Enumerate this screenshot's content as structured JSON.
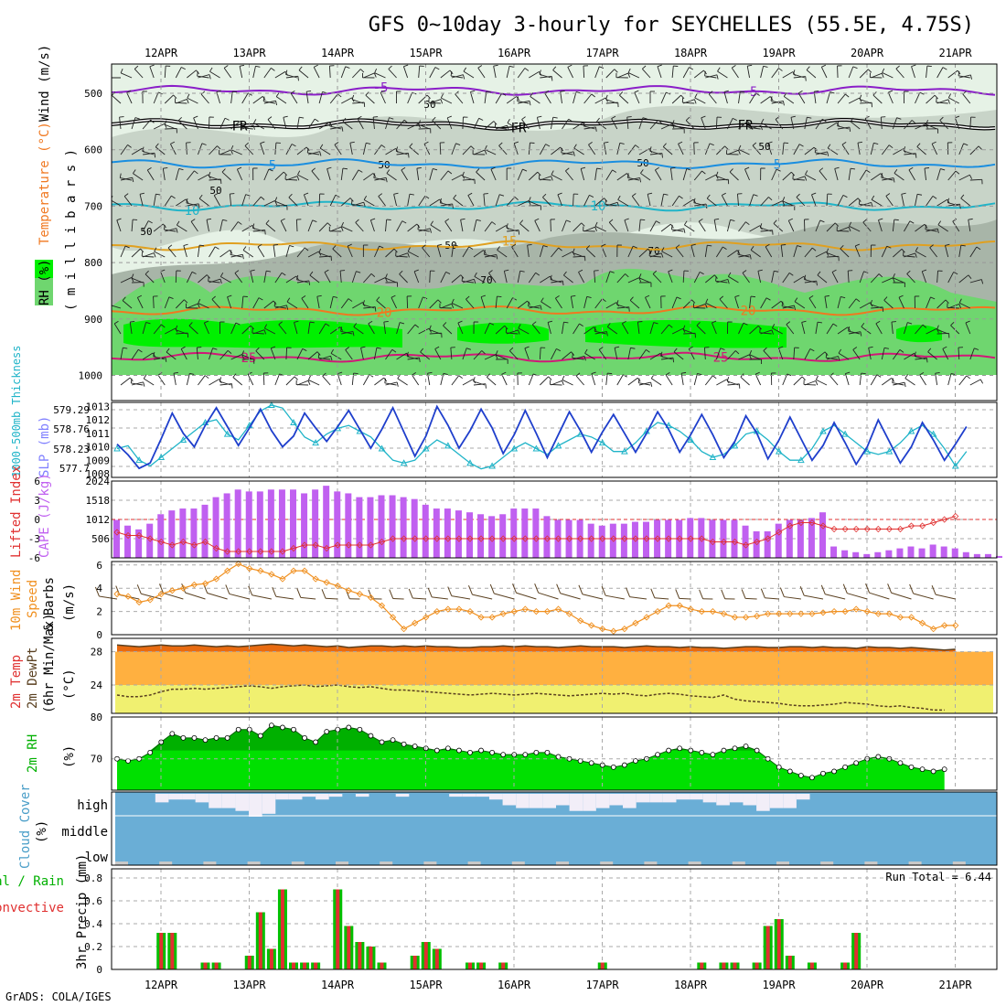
{
  "title": "GFS 0~10day 3-hourly for SEYCHELLES (55.5E, 4.75S)",
  "credit": "GrADS: COLA/IGES",
  "dates": [
    "12APR",
    "13APR",
    "14APR",
    "15APR",
    "16APR",
    "17APR",
    "18APR",
    "19APR",
    "20APR",
    "21APR"
  ],
  "colors": {
    "rh_light": "#e6f2e6",
    "rh_mid": "#c2cfc2",
    "rh_50": "#a8b5a8",
    "rh_70": "#6fd66f",
    "rh_90": "#00f000",
    "cyan": "#20b4c8",
    "blue": "#1f3fcc",
    "red": "#e03030",
    "purple": "#c060f0",
    "orange": "#f09020",
    "brown": "#5a4020",
    "green": "#00e000",
    "darkgreen": "#00b000",
    "cloud": "#6aaed6",
    "cloud_light": "#f2eef8",
    "cloud_gray": "#c8c8c8"
  },
  "panels": {
    "upper": {
      "ylabel_parts": [
        "RH (%)",
        "Temperature (°C)",
        "Wind (m/s)"
      ],
      "unit": "( m i l l i b a r s )",
      "pressure_ticks": [
        "500",
        "600",
        "700",
        "800",
        "900",
        "1000"
      ],
      "isotherms": [
        {
          "label": "-5",
          "color": "#8a1ec8",
          "p": 495
        },
        {
          "label": "FR",
          "color": "#000000",
          "p": 555
        },
        {
          "label": "5",
          "color": "#1a8ee0",
          "p": 625
        },
        {
          "label": "10",
          "color": "#20b4c8",
          "p": 700
        },
        {
          "label": "15",
          "color": "#e0a020",
          "p": 770
        },
        {
          "label": "20",
          "color": "#f07820",
          "p": 885
        },
        {
          "label": "25",
          "color": "#d01878",
          "p": 968
        }
      ],
      "rh_labels": [
        "50",
        "70"
      ]
    },
    "slp": {
      "ylabel_thk": "1000-500mb Thickness",
      "ylabel_slp": "SLP (mb)",
      "thickness_ticks": [
        "579.29",
        "578.76",
        "578.23",
        "577.7"
      ],
      "slp_ticks": [
        "1013",
        "1012",
        "1011",
        "1010",
        "1009",
        "1008"
      ],
      "slp_range": [
        1008,
        1013.3
      ],
      "thk_range": [
        5772,
        5796
      ]
    },
    "cape": {
      "ylabel_li": "Lifted Index",
      "ylabel_cape": "CAPE (J/kg)",
      "li_ticks": [
        "-6",
        "-3",
        "0",
        "3",
        "6"
      ],
      "cape_ticks": [
        "2024",
        "1518",
        "1012",
        "506"
      ],
      "cape_range": [
        0,
        2024
      ],
      "li_range": [
        6,
        -6
      ]
    },
    "wind": {
      "ylabel": [
        "10m Wind",
        "Speed",
        "& Barbs",
        "(m/s)"
      ],
      "ticks": [
        "6",
        "4",
        "2",
        "0"
      ],
      "range": [
        0,
        6.3
      ]
    },
    "temp": {
      "ylabel": [
        "2m Temp",
        "2m DewPt",
        "(6hr Min/Max)",
        "(°C)"
      ],
      "ticks": [
        "28",
        "24"
      ],
      "range": [
        20.6,
        29.6
      ]
    },
    "rh": {
      "ylabel": [
        "2m RH",
        "(%)"
      ],
      "ticks": [
        "80",
        "70"
      ],
      "range": [
        62.5,
        80
      ]
    },
    "cloud": {
      "ylabel": [
        "Cloud Cover",
        "(%)"
      ],
      "levels": [
        "high",
        "middle",
        "low"
      ]
    },
    "precip": {
      "ylabel_total": "Total / Rain",
      "ylabel_conv": "Convective",
      "ylabel_unit": "3hr Precip (mm)",
      "ticks": [
        "0.8",
        "0.6",
        "0.4",
        "0.2",
        "0"
      ],
      "range": [
        0,
        0.88
      ],
      "run_total": "Run Total = 6.44"
    }
  },
  "chart_data": {
    "type": "line",
    "x_step_hours": 3,
    "slp": [
      1010.2,
      1009.4,
      1008.4,
      1008.8,
      1010.6,
      1012.5,
      1011.0,
      1010.0,
      1011.6,
      1012.9,
      1011.5,
      1010.1,
      1011.4,
      1012.8,
      1011.2,
      1010.0,
      1010.8,
      1012.5,
      1011.4,
      1010.4,
      1011.5,
      1012.7,
      1011.3,
      1009.9,
      1011.3,
      1012.9,
      1011.1,
      1009.3,
      1010.8,
      1013.0,
      1011.6,
      1009.9,
      1011.2,
      1012.8,
      1011.4,
      1009.5,
      1010.9,
      1012.7,
      1011.0,
      1009.2,
      1010.9,
      1012.6,
      1011.2,
      1009.6,
      1011.1,
      1012.4,
      1011.0,
      1009.6,
      1011.0,
      1012.6,
      1011.3,
      1009.6,
      1010.9,
      1012.4,
      1010.9,
      1009.2,
      1010.4,
      1012.3,
      1011.0,
      1009.1,
      1010.5,
      1012.2,
      1010.6,
      1009.0,
      1010.1,
      1011.8,
      1010.3,
      1008.7,
      1010.0,
      1012.0,
      1010.4,
      1008.8,
      1010.0,
      1011.8,
      1010.5,
      1009.0,
      1010.2,
      1011.5
    ],
    "thickness": [
      5781,
      5782,
      5777,
      5775,
      5778,
      5781,
      5784,
      5787,
      5790,
      5791,
      5786,
      5784,
      5789,
      5794,
      5796,
      5795,
      5790,
      5785,
      5783,
      5786,
      5788,
      5789,
      5787,
      5785,
      5781,
      5777,
      5776,
      5777,
      5781,
      5784,
      5782,
      5779,
      5776,
      5774,
      5775,
      5778,
      5781,
      5783,
      5781,
      5779,
      5782,
      5784,
      5786,
      5785,
      5783,
      5780,
      5780,
      5783,
      5787,
      5790,
      5789,
      5787,
      5784,
      5780,
      5778,
      5779,
      5782,
      5786,
      5787,
      5784,
      5780,
      5777,
      5777,
      5781,
      5787,
      5789,
      5786,
      5783,
      5780,
      5779,
      5780,
      5783,
      5787,
      5789,
      5786,
      5781,
      5775,
      5780
    ],
    "cape": [
      1000,
      850,
      750,
      900,
      1150,
      1250,
      1300,
      1300,
      1400,
      1600,
      1700,
      1800,
      1750,
      1750,
      1800,
      1800,
      1800,
      1700,
      1800,
      1900,
      1750,
      1700,
      1600,
      1600,
      1650,
      1650,
      1600,
      1550,
      1400,
      1300,
      1300,
      1250,
      1200,
      1150,
      1100,
      1150,
      1300,
      1300,
      1300,
      1100,
      1000,
      1000,
      1000,
      900,
      850,
      900,
      900,
      950,
      950,
      1000,
      1000,
      1000,
      1050,
      1050,
      1000,
      1000,
      1000,
      850,
      700,
      700,
      900,
      1000,
      1000,
      1050,
      1200,
      300,
      200,
      150,
      100,
      150,
      200,
      250,
      300,
      250,
      350,
      300,
      250,
      150,
      100,
      100,
      50
    ],
    "lifted_index": [
      -2,
      -2.5,
      -2.5,
      -3,
      -3.5,
      -4,
      -3.5,
      -4,
      -3.5,
      -4.5,
      -5,
      -5,
      -5,
      -5,
      -5,
      -5,
      -4.5,
      -4,
      -4,
      -4.5,
      -4,
      -4,
      -4,
      -4,
      -3.5,
      -3,
      -3,
      -3,
      -3,
      -3,
      -3,
      -3,
      -3,
      -3,
      -3,
      -3,
      -3,
      -3,
      -3,
      -3,
      -3,
      -3,
      -3,
      -3,
      -3,
      -3,
      -3,
      -3,
      -3,
      -3,
      -3,
      -3,
      -3,
      -3,
      -3.5,
      -3.5,
      -3.5,
      -4,
      -3.5,
      -3,
      -2,
      -1,
      -0.5,
      -0.5,
      -1,
      -1.5,
      -1.5,
      -1.5,
      -1.5,
      -1.5,
      -1.5,
      -1.5,
      -1,
      -1,
      -0.5,
      0,
      0.5
    ],
    "wind_speed": [
      3.5,
      3.3,
      2.8,
      3.0,
      3.5,
      3.8,
      4.0,
      4.3,
      4.4,
      4.8,
      5.5,
      6.1,
      5.7,
      5.5,
      5.2,
      4.8,
      5.5,
      5.5,
      4.8,
      4.5,
      4.2,
      3.8,
      3.5,
      3.2,
      2.5,
      1.5,
      0.5,
      1.0,
      1.5,
      2.0,
      2.2,
      2.2,
      2.0,
      1.5,
      1.5,
      1.8,
      2.0,
      2.2,
      2.0,
      2.0,
      2.2,
      1.8,
      1.2,
      0.8,
      0.5,
      0.3,
      0.5,
      1.0,
      1.5,
      2.0,
      2.5,
      2.5,
      2.2,
      2.0,
      2.0,
      1.8,
      1.5,
      1.5,
      1.6,
      1.8,
      1.8,
      1.8,
      1.8,
      1.8,
      1.9,
      2.0,
      2.0,
      2.2,
      2.0,
      1.8,
      1.8,
      1.5,
      1.5,
      1.0,
      0.5,
      0.8,
      0.8
    ],
    "temp_max": [
      28.8,
      28.7,
      28.6,
      28.7,
      28.8,
      28.7,
      28.7,
      28.8,
      28.7,
      28.6,
      28.7,
      28.6,
      28.7,
      28.8,
      28.9,
      28.8,
      28.7,
      28.8,
      28.7,
      28.6,
      28.7,
      28.5,
      28.6,
      28.7,
      28.7,
      28.6,
      28.7,
      28.6,
      28.7,
      28.6,
      28.6,
      28.5,
      28.5,
      28.6,
      28.6,
      28.7,
      28.6,
      28.7,
      28.6,
      28.6,
      28.5,
      28.6,
      28.7,
      28.6,
      28.6,
      28.6,
      28.5,
      28.6,
      28.7,
      28.6,
      28.6,
      28.5,
      28.6,
      28.5,
      28.5,
      28.4,
      28.5,
      28.6,
      28.6,
      28.5,
      28.5,
      28.6,
      28.6,
      28.5,
      28.6,
      28.5,
      28.5,
      28.4,
      28.6,
      28.5,
      28.5,
      28.4,
      28.5,
      28.4,
      28.3,
      28.2,
      28.3
    ],
    "dewpoint": [
      22.8,
      22.6,
      22.6,
      22.8,
      23.2,
      23.5,
      23.5,
      23.6,
      23.5,
      23.6,
      23.7,
      23.8,
      23.9,
      23.8,
      23.6,
      23.8,
      23.9,
      24.0,
      23.8,
      23.9,
      24.0,
      23.8,
      23.7,
      23.8,
      23.6,
      23.4,
      23.4,
      23.3,
      23.2,
      23.1,
      23.0,
      22.9,
      22.8,
      22.9,
      23.0,
      22.9,
      22.8,
      22.9,
      23.0,
      22.9,
      22.8,
      22.7,
      22.8,
      22.9,
      23.0,
      22.9,
      23.0,
      22.8,
      22.7,
      22.9,
      23.0,
      22.9,
      22.7,
      22.6,
      22.5,
      22.8,
      22.3,
      22.1,
      22.0,
      21.9,
      21.8,
      21.6,
      21.5,
      21.5,
      21.6,
      21.7,
      21.9,
      21.8,
      21.7,
      21.5,
      21.4,
      21.5,
      21.3,
      21.2,
      21.0,
      21.0
    ],
    "rh2m": [
      70,
      69.5,
      70,
      71.5,
      74,
      76,
      75,
      75,
      74.5,
      75,
      75,
      77,
      77,
      75.5,
      78,
      77.5,
      77,
      75,
      74,
      76.5,
      77,
      77.5,
      77,
      75.5,
      74,
      74.5,
      73.5,
      73,
      72.5,
      72,
      72.5,
      72,
      71.5,
      72,
      71.5,
      71,
      71,
      71,
      71.5,
      71.5,
      70.5,
      70,
      69.5,
      69,
      68.5,
      68,
      68.5,
      69.5,
      70,
      71,
      72,
      72.5,
      72,
      71.5,
      71,
      72,
      72.5,
      73,
      72,
      70,
      68,
      67,
      66,
      65.5,
      66.5,
      67,
      68,
      69,
      70,
      70.5,
      70,
      69,
      68,
      67.5,
      67,
      67.5
    ],
    "cloud_high": [
      0,
      0,
      0,
      15,
      10,
      10,
      15,
      25,
      25,
      30,
      40,
      35,
      10,
      10,
      5,
      10,
      5,
      0,
      5,
      0,
      0,
      5,
      0,
      0,
      0,
      5,
      5,
      5,
      10,
      20,
      25,
      25,
      25,
      20,
      30,
      30,
      25,
      20,
      25,
      15,
      15,
      15,
      10,
      10,
      15,
      20,
      15,
      20,
      30,
      25,
      25,
      10,
      0,
      0,
      0,
      0,
      0,
      0,
      0,
      0,
      0,
      0,
      0,
      0,
      0,
      0
    ],
    "cloud_low": [
      0,
      0,
      0,
      0,
      0,
      0,
      0,
      0,
      0,
      0,
      0,
      0,
      0,
      0,
      0,
      0,
      0,
      0,
      0,
      0,
      0,
      0,
      0,
      0,
      0,
      0,
      0,
      0,
      0,
      0,
      0,
      0,
      0,
      0,
      0,
      0,
      0,
      0,
      0,
      0,
      0,
      0,
      0,
      0,
      0,
      0,
      0,
      0,
      0,
      0,
      0,
      0,
      0,
      0,
      0,
      0,
      0,
      0,
      0,
      0,
      0,
      0,
      0,
      0,
      0,
      0
    ],
    "precip_3hr": [
      0,
      0,
      0,
      0,
      0.32,
      0.32,
      0,
      0,
      0.06,
      0.06,
      0,
      0,
      0.12,
      0.5,
      0.18,
      0.7,
      0.06,
      0.06,
      0.06,
      0,
      0.7,
      0.38,
      0.24,
      0.2,
      0.06,
      0,
      0,
      0.12,
      0.24,
      0.18,
      0,
      0,
      0.06,
      0.06,
      0,
      0.06,
      0,
      0,
      0,
      0,
      0,
      0,
      0,
      0,
      0.06,
      0,
      0,
      0,
      0,
      0,
      0,
      0,
      0,
      0.06,
      0,
      0.06,
      0.06,
      0,
      0.06,
      0.38,
      0.44,
      0.12,
      0,
      0.06,
      0,
      0,
      0.06,
      0.32,
      0,
      0,
      0,
      0,
      0,
      0,
      0,
      0,
      0,
      0,
      0,
      0,
      0
    ]
  }
}
